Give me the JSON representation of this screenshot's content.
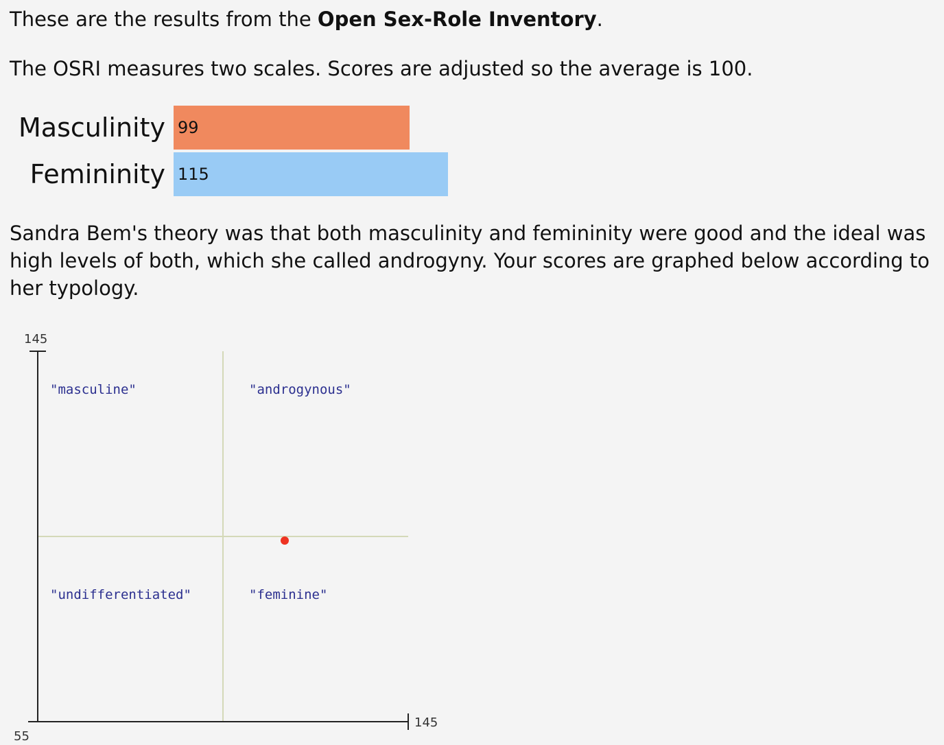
{
  "intro": {
    "text_before": "These are the results from the ",
    "test_name": "Open Sex-Role Inventory",
    "text_after": "."
  },
  "scales_text": "The OSRI measures two scales. Scores are adjusted so the average is 100.",
  "scores": [
    {
      "label": "Masculinity",
      "value": 99,
      "color": "#f0895e"
    },
    {
      "label": "Femininity",
      "value": 115,
      "color": "#99cbf5"
    }
  ],
  "bem_text": "Sandra Bem's theory was that both masculinity and femininity were good and the ideal was high levels of both, which she called androgyny. Your scores are graphed below according to her typology.",
  "chart_data": {
    "type": "scatter",
    "x_axis": {
      "min": 55,
      "max": 145,
      "max_label": "145"
    },
    "y_axis": {
      "min": 55,
      "max": 145,
      "max_label": "145",
      "min_label": "55"
    },
    "divider_x": 100,
    "divider_y": 100,
    "quadrants": {
      "top_left": "\"masculine\"",
      "top_right": "\"androgynous\"",
      "bottom_left": "\"undifferentiated\"",
      "bottom_right": "\"feminine\""
    },
    "point": {
      "x": 115,
      "y": 99,
      "color": "#ee3322"
    },
    "axis_color": "#222222",
    "divider_color": "#d4d9b8",
    "quadrant_label_color": "#2b2f8f"
  }
}
